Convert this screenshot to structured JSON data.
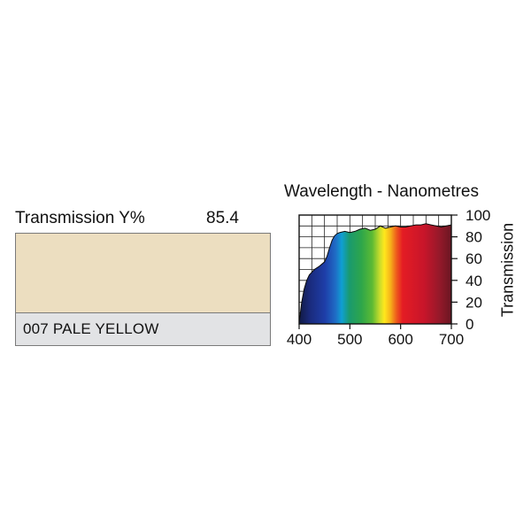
{
  "filter": {
    "transmission_label": "Transmission Y%",
    "transmission_value": "85.4",
    "name": "007 PALE YELLOW",
    "swatch_color": "#ecdec0",
    "name_bar_color": "#e2e3e5"
  },
  "chart_data": {
    "type": "area",
    "title": "Wavelength - Nanometres",
    "xlabel": "",
    "ylabel": "Transmission",
    "xlim": [
      400,
      700
    ],
    "ylim": [
      0,
      100
    ],
    "x_ticks": [
      "400",
      "500",
      "600",
      "700"
    ],
    "y_ticks": [
      "0",
      "20",
      "40",
      "60",
      "80",
      "100"
    ],
    "grid": true,
    "fill": "visible-spectrum gradient",
    "x": [
      400,
      402,
      405,
      410,
      415,
      420,
      430,
      440,
      450,
      455,
      460,
      465,
      470,
      475,
      480,
      490,
      500,
      510,
      520,
      530,
      540,
      550,
      560,
      570,
      580,
      590,
      600,
      610,
      620,
      630,
      640,
      650,
      660,
      670,
      680,
      690,
      700
    ],
    "y": [
      2,
      8,
      20,
      32,
      40,
      45,
      50,
      53,
      57,
      62,
      70,
      77,
      81,
      83,
      84,
      85,
      84,
      85,
      87,
      88,
      86,
      87,
      90,
      88,
      89,
      90,
      89,
      89,
      90,
      91,
      91,
      92,
      91,
      90,
      89,
      90,
      91
    ]
  }
}
